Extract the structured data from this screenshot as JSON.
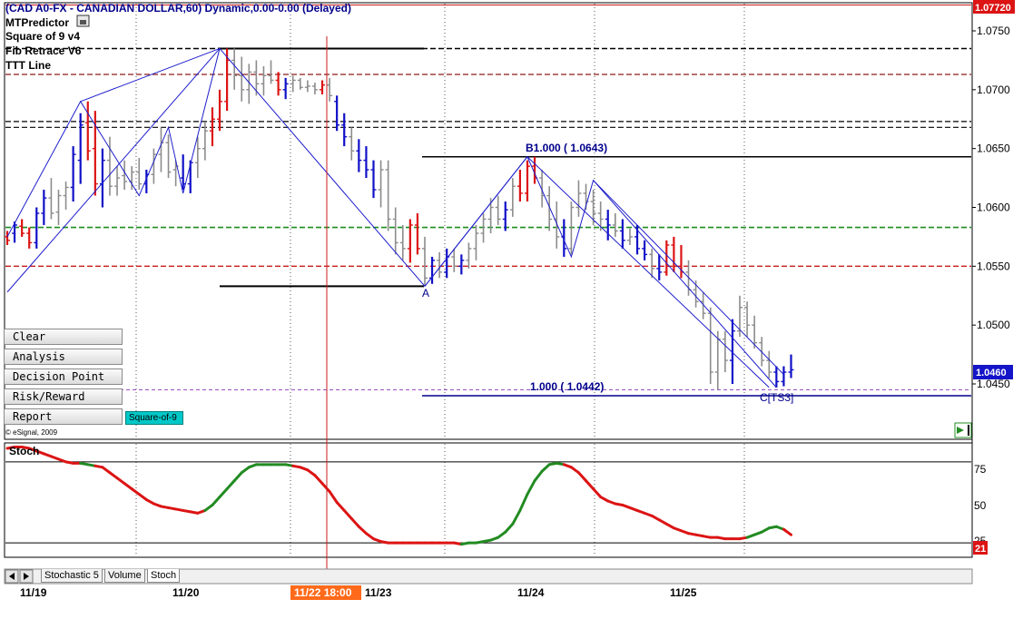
{
  "header": {
    "title": "(CAD A0-FX - CANADIAN DOLLAR,60) Dynamic,0.00-0.00 (Delayed)",
    "studies": [
      "MTPredictor",
      "Square of 9 v4",
      "Fib Retrace V6",
      "TTT Line"
    ]
  },
  "buttons": [
    "Clear",
    "Analysis",
    "Decision Point",
    "Risk/Reward",
    "Report"
  ],
  "square_of_9_label": "Square-of-9",
  "copyright": "© eSignal, 2009",
  "annotations": {
    "b_label": "B1.000 ( 1.0643)",
    "c_label": "1.000 ( 1.0442)",
    "point_a": "A",
    "point_c": "C[TS3]"
  },
  "price_tags": {
    "top": "1.07720",
    "current": "1.0460"
  },
  "stoch_panel": {
    "title": "Stoch",
    "tag": "21",
    "ticks": [
      "75",
      "50",
      "25"
    ]
  },
  "tabs": [
    "Stochastic 5",
    "Volume",
    "Stoch"
  ],
  "time_axis": {
    "labels": [
      "11/19",
      "11/20",
      "11/23",
      "11/24",
      "11/25"
    ],
    "cursor_label": "11/22 18:00"
  },
  "colors": {
    "up": "#1010c8",
    "down": "#dc1414",
    "neutral": "#8c8c8c",
    "stoch_down": "#dc1414",
    "stoch_up": "#228b22"
  },
  "chart_data": [
    {
      "type": "bar",
      "subtype": "ohlc-price",
      "y_ticks": [
        "1.0750",
        "1.0700",
        "1.0650",
        "1.0600",
        "1.0550",
        "1.0500",
        "1.0450"
      ],
      "ylim": [
        1.0435,
        1.0775
      ],
      "horizontal_levels": [
        1.0772,
        1.0735,
        1.0713,
        1.0673,
        1.0668,
        1.0583,
        1.055,
        1.0445
      ],
      "swing_points": [
        {
          "label": "A",
          "x": 57,
          "y": 1.0533
        },
        {
          "label": "B",
          "x": 72,
          "y": 1.0643
        },
        {
          "label": "C",
          "x": 106,
          "y": 1.0447
        }
      ],
      "series": [
        {
          "name": "bars",
          "values": [
            [
              1.0575,
              1.058,
              1.0568,
              1.0572,
              "d"
            ],
            [
              1.0578,
              1.0588,
              1.057,
              1.0585,
              "u"
            ],
            [
              1.0584,
              1.059,
              1.0575,
              1.0578,
              "d"
            ],
            [
              1.0578,
              1.0583,
              1.0565,
              1.057,
              "d"
            ],
            [
              1.057,
              1.06,
              1.0565,
              1.0595,
              "u"
            ],
            [
              1.0595,
              1.0615,
              1.0585,
              1.0608,
              "u"
            ],
            [
              1.0608,
              1.0625,
              1.059,
              1.0595,
              "n"
            ],
            [
              1.0596,
              1.0615,
              1.0585,
              1.061,
              "n"
            ],
            [
              1.061,
              1.0622,
              1.0598,
              1.0617,
              "n"
            ],
            [
              1.0617,
              1.0652,
              1.0605,
              1.0645,
              "u"
            ],
            [
              1.064,
              1.068,
              1.062,
              1.067,
              "u"
            ],
            [
              1.0672,
              1.069,
              1.064,
              1.0648,
              "d"
            ],
            [
              1.065,
              1.0682,
              1.061,
              1.062,
              "d"
            ],
            [
              1.062,
              1.065,
              1.06,
              1.064,
              "u"
            ],
            [
              1.064,
              1.066,
              1.061,
              1.0618,
              "n"
            ],
            [
              1.0618,
              1.0635,
              1.061,
              1.0625,
              "n"
            ],
            [
              1.0627,
              1.064,
              1.0615,
              1.0622,
              "n"
            ],
            [
              1.0622,
              1.0635,
              1.0615,
              1.063,
              "n"
            ],
            [
              1.063,
              1.0642,
              1.0615,
              1.062,
              "n"
            ],
            [
              1.062,
              1.0632,
              1.0612,
              1.0628,
              "u"
            ],
            [
              1.0628,
              1.065,
              1.062,
              1.0645,
              "n"
            ],
            [
              1.0645,
              1.0668,
              1.063,
              1.0655,
              "n"
            ],
            [
              1.0655,
              1.0662,
              1.0625,
              1.063,
              "n"
            ],
            [
              1.0632,
              1.064,
              1.0618,
              1.0635,
              "n"
            ],
            [
              1.0625,
              1.0645,
              1.0615,
              1.062,
              "u"
            ],
            [
              1.062,
              1.064,
              1.0612,
              1.0638,
              "u"
            ],
            [
              1.0638,
              1.066,
              1.0625,
              1.065,
              "n"
            ],
            [
              1.065,
              1.0672,
              1.064,
              1.0665,
              "n"
            ],
            [
              1.0665,
              1.0685,
              1.0652,
              1.0675,
              "d"
            ],
            [
              1.0675,
              1.07,
              1.0665,
              1.069,
              "d"
            ],
            [
              1.069,
              1.0735,
              1.0682,
              1.0725,
              "d"
            ],
            [
              1.0725,
              1.0735,
              1.07,
              1.0712,
              "n"
            ],
            [
              1.0712,
              1.0728,
              1.069,
              1.07,
              "n"
            ],
            [
              1.07,
              1.0722,
              1.0688,
              1.0715,
              "n"
            ],
            [
              1.0715,
              1.0725,
              1.0695,
              1.0705,
              "n"
            ],
            [
              1.0705,
              1.072,
              1.0695,
              1.0712,
              "n"
            ],
            [
              1.0712,
              1.0725,
              1.0705,
              1.0708,
              "n"
            ],
            [
              1.0708,
              1.0715,
              1.0695,
              1.07,
              "d"
            ],
            [
              1.07,
              1.071,
              1.0692,
              1.0705,
              "u"
            ],
            [
              1.0705,
              1.0712,
              1.0698,
              1.0708,
              "n"
            ],
            [
              1.0708,
              1.071,
              1.07,
              1.0702,
              "n"
            ],
            [
              1.0702,
              1.0708,
              1.0698,
              1.0703,
              "n"
            ],
            [
              1.0703,
              1.0706,
              1.0696,
              1.07,
              "n"
            ],
            [
              1.07,
              1.0708,
              1.0696,
              1.0704,
              "d"
            ],
            [
              1.0704,
              1.071,
              1.069,
              1.0695,
              "n"
            ],
            [
              1.069,
              1.0695,
              1.0665,
              1.067,
              "u"
            ],
            [
              1.067,
              1.068,
              1.0652,
              1.066,
              "u"
            ],
            [
              1.066,
              1.0668,
              1.064,
              1.0648,
              "n"
            ],
            [
              1.0648,
              1.0658,
              1.063,
              1.064,
              "u"
            ],
            [
              1.064,
              1.0652,
              1.0625,
              1.0632,
              "u"
            ],
            [
              1.0632,
              1.064,
              1.0608,
              1.0615,
              "u"
            ],
            [
              1.0615,
              1.064,
              1.06,
              1.0632,
              "n"
            ],
            [
              1.0632,
              1.064,
              1.058,
              1.059,
              "n"
            ],
            [
              1.059,
              1.06,
              1.056,
              1.057,
              "n"
            ],
            [
              1.057,
              1.0585,
              1.0555,
              1.0565,
              "n"
            ],
            [
              1.0565,
              1.059,
              1.0553,
              1.0585,
              "d"
            ],
            [
              1.0585,
              1.0595,
              1.056,
              1.0565,
              "d"
            ],
            [
              1.0565,
              1.0575,
              1.0533,
              1.054,
              "n"
            ],
            [
              1.054,
              1.0558,
              1.0535,
              1.0555,
              "u"
            ],
            [
              1.0555,
              1.0562,
              1.054,
              1.0545,
              "n"
            ],
            [
              1.0545,
              1.0565,
              1.054,
              1.0558,
              "u"
            ],
            [
              1.0558,
              1.0565,
              1.0545,
              1.055,
              "n"
            ],
            [
              1.055,
              1.056,
              1.0543,
              1.0555,
              "u"
            ],
            [
              1.0555,
              1.057,
              1.0548,
              1.0565,
              "n"
            ],
            [
              1.0565,
              1.0585,
              1.0555,
              1.0578,
              "n"
            ],
            [
              1.0578,
              1.0595,
              1.057,
              1.059,
              "n"
            ],
            [
              1.059,
              1.0608,
              1.0578,
              1.06,
              "n"
            ],
            [
              1.06,
              1.061,
              1.0585,
              1.059,
              "n"
            ],
            [
              1.059,
              1.0605,
              1.058,
              1.0598,
              "u"
            ],
            [
              1.0598,
              1.0625,
              1.0592,
              1.0618,
              "n"
            ],
            [
              1.0618,
              1.0632,
              1.0605,
              1.0612,
              "d"
            ],
            [
              1.0612,
              1.064,
              1.0605,
              1.0635,
              "d"
            ],
            [
              1.0635,
              1.0643,
              1.062,
              1.0625,
              "d"
            ],
            [
              1.0625,
              1.0632,
              1.06,
              1.061,
              "n"
            ],
            [
              1.061,
              1.0618,
              1.058,
              1.059,
              "n"
            ],
            [
              1.059,
              1.0605,
              1.0565,
              1.0575,
              "n"
            ],
            [
              1.0575,
              1.059,
              1.0558,
              1.0565,
              "u"
            ],
            [
              1.0565,
              1.0605,
              1.056,
              1.06,
              "n"
            ],
            [
              1.06,
              1.0623,
              1.0592,
              1.0612,
              "n"
            ],
            [
              1.0612,
              1.062,
              1.0598,
              1.0605,
              "n"
            ],
            [
              1.0605,
              1.0615,
              1.0585,
              1.0595,
              "n"
            ],
            [
              1.0595,
              1.0605,
              1.058,
              1.059,
              "n"
            ],
            [
              1.059,
              1.0598,
              1.0572,
              1.0585,
              "u"
            ],
            [
              1.0585,
              1.0595,
              1.0575,
              1.058,
              "n"
            ],
            [
              1.058,
              1.059,
              1.0565,
              1.0572,
              "u"
            ],
            [
              1.0572,
              1.0582,
              1.0568,
              1.0575,
              "n"
            ],
            [
              1.0575,
              1.0585,
              1.056,
              1.0565,
              "u"
            ],
            [
              1.0565,
              1.0572,
              1.0555,
              1.056,
              "u"
            ],
            [
              1.056,
              1.0565,
              1.054,
              1.0548,
              "n"
            ],
            [
              1.0548,
              1.056,
              1.0538,
              1.0545,
              "u"
            ],
            [
              1.0545,
              1.0572,
              1.0542,
              1.0568,
              "d"
            ],
            [
              1.0568,
              1.0575,
              1.0545,
              1.055,
              "d"
            ],
            [
              1.055,
              1.0568,
              1.054,
              1.0545,
              "d"
            ],
            [
              1.0545,
              1.0555,
              1.0525,
              1.053,
              "n"
            ],
            [
              1.053,
              1.0538,
              1.0515,
              1.052,
              "n"
            ],
            [
              1.052,
              1.0528,
              1.0505,
              1.051,
              "n"
            ],
            [
              1.051,
              1.0515,
              1.045,
              1.046,
              "n"
            ],
            [
              1.046,
              1.0495,
              1.0445,
              1.0488,
              "n"
            ],
            [
              1.0488,
              1.0495,
              1.046,
              1.047,
              "n"
            ],
            [
              1.047,
              1.0505,
              1.045,
              1.0495,
              "u"
            ],
            [
              1.0495,
              1.0525,
              1.049,
              1.0515,
              "n"
            ],
            [
              1.0515,
              1.052,
              1.049,
              1.05,
              "n"
            ],
            [
              1.05,
              1.0508,
              1.048,
              1.0485,
              "n"
            ],
            [
              1.0485,
              1.049,
              1.0465,
              1.047,
              "n"
            ],
            [
              1.047,
              1.0478,
              1.0455,
              1.046,
              "n"
            ],
            [
              1.046,
              1.0465,
              1.0447,
              1.0452,
              "u"
            ],
            [
              1.0452,
              1.0465,
              1.0448,
              1.046,
              "u"
            ],
            [
              1.046,
              1.0475,
              1.0455,
              1.0462,
              "u"
            ]
          ]
        }
      ]
    },
    {
      "type": "line",
      "subtype": "stochastic",
      "ylim": [
        10,
        92
      ],
      "values": [
        90,
        91,
        91,
        90,
        88,
        86,
        84,
        82,
        80,
        79,
        79,
        78,
        77,
        76,
        72,
        68,
        64,
        60,
        56,
        52,
        49,
        47,
        46,
        45,
        44,
        43,
        42,
        44,
        48,
        54,
        60,
        66,
        72,
        76,
        78,
        78,
        78,
        78,
        78,
        77,
        76,
        74,
        70,
        64,
        58,
        50,
        44,
        38,
        32,
        27,
        23,
        21,
        20,
        20,
        20,
        20,
        20,
        20,
        20,
        20,
        20,
        20,
        19,
        20,
        20,
        21,
        22,
        24,
        28,
        34,
        44,
        56,
        66,
        73,
        78,
        79,
        78,
        76,
        72,
        66,
        60,
        54,
        51,
        49,
        48,
        46,
        44,
        42,
        40,
        37,
        34,
        31,
        29,
        27,
        26,
        25,
        24,
        24,
        23,
        23,
        23,
        24,
        26,
        28,
        31,
        32,
        30,
        26
      ],
      "colors": [
        "d",
        "d",
        "d",
        "d",
        "d",
        "d",
        "d",
        "d",
        "d",
        "d",
        "u",
        "u",
        "d",
        "d",
        "d",
        "d",
        "d",
        "d",
        "d",
        "d",
        "d",
        "d",
        "d",
        "d",
        "d",
        "d",
        "d",
        "u",
        "u",
        "u",
        "u",
        "u",
        "u",
        "u",
        "u",
        "u",
        "u",
        "u",
        "u",
        "d",
        "d",
        "d",
        "d",
        "d",
        "d",
        "d",
        "d",
        "d",
        "d",
        "d",
        "d",
        "d",
        "d",
        "d",
        "d",
        "d",
        "d",
        "d",
        "d",
        "d",
        "d",
        "d",
        "u",
        "u",
        "u",
        "u",
        "u",
        "u",
        "u",
        "u",
        "u",
        "u",
        "u",
        "u",
        "u",
        "u",
        "d",
        "d",
        "d",
        "d",
        "d",
        "d",
        "d",
        "d",
        "d",
        "d",
        "d",
        "d",
        "d",
        "d",
        "d",
        "d",
        "d",
        "d",
        "d",
        "d",
        "d",
        "d",
        "d",
        "d",
        "d",
        "u",
        "u",
        "u",
        "u",
        "u",
        "d",
        "d"
      ]
    }
  ]
}
